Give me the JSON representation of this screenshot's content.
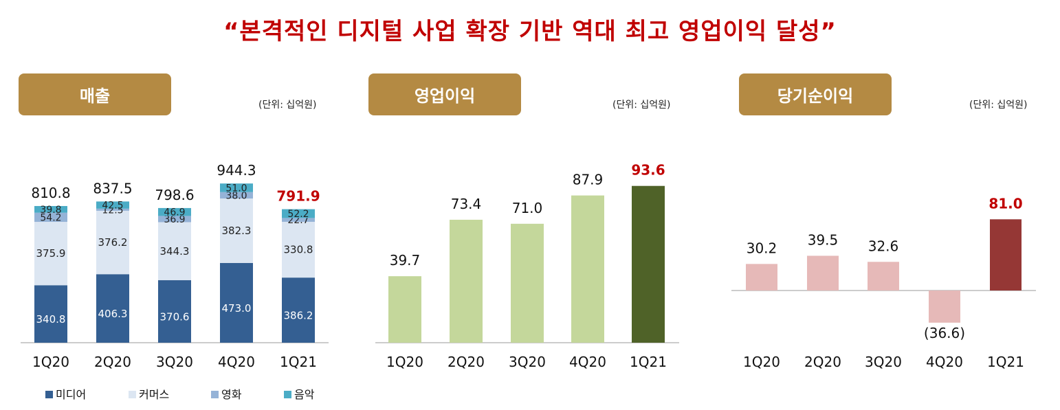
{
  "headline": "“본격적인 디지털 사업 확장 기반 역대 최고 영업이익 달성”",
  "unit_label": "(단위:  십억원)",
  "colors": {
    "title": "#c00000",
    "panel_header": "#b48a43",
    "media": "#345f92",
    "commerce": "#dce6f2",
    "movie": "#95b3d7",
    "music": "#4bacc6",
    "op_normal": "#c4d79b",
    "op_highlight": "#4f6228",
    "ni_normal": "#e6b9b8",
    "ni_highlight": "#953735",
    "highlight_text": "#c00000"
  },
  "chart_data": [
    {
      "type": "bar",
      "stacked": true,
      "title": "매출",
      "categories": [
        "1Q20",
        "2Q20",
        "3Q20",
        "4Q20",
        "1Q21"
      ],
      "series": [
        {
          "name": "미디어",
          "values": [
            340.8,
            406.3,
            370.6,
            473.0,
            386.2
          ],
          "labels": [
            "340.8",
            "406.3",
            "370.6",
            "473.0",
            "386.2"
          ]
        },
        {
          "name": "커머스",
          "values": [
            375.9,
            376.2,
            344.3,
            382.3,
            330.8
          ],
          "labels": [
            "375.9",
            "376.2",
            "344.3",
            "382.3",
            "330.8"
          ]
        },
        {
          "name": "영화",
          "values": [
            54.2,
            12.5,
            36.9,
            38.0,
            22.7
          ],
          "labels": [
            "54.2",
            "12.5",
            "36.9",
            "38.0",
            "22.7"
          ]
        },
        {
          "name": "음악",
          "values": [
            39.8,
            42.5,
            46.9,
            51.0,
            52.2
          ],
          "labels": [
            "39.8",
            "42.5",
            "46.9",
            "51.0",
            "52.2"
          ]
        }
      ],
      "totals": [
        "810.8",
        "837.5",
        "798.6",
        "944.3",
        "791.9"
      ],
      "highlight_index": 4,
      "legend": [
        "미디어",
        "커머스",
        "영화",
        "음악"
      ],
      "legend_position": "bottom",
      "ylim": [
        0,
        1000
      ]
    },
    {
      "type": "bar",
      "title": "영업이익",
      "categories": [
        "1Q20",
        "2Q20",
        "3Q20",
        "4Q20",
        "1Q21"
      ],
      "values": [
        39.7,
        73.4,
        71.0,
        87.9,
        93.6
      ],
      "labels": [
        "39.7",
        "73.4",
        "71.0",
        "87.9",
        "93.6"
      ],
      "highlight_index": 4,
      "ylim": [
        0,
        100
      ]
    },
    {
      "type": "bar",
      "title": "당기순이익",
      "categories": [
        "1Q20",
        "2Q20",
        "3Q20",
        "4Q20",
        "1Q21"
      ],
      "values": [
        30.2,
        39.5,
        32.6,
        -36.6,
        81.0
      ],
      "labels": [
        "30.2",
        "39.5",
        "32.6",
        "(36.6)",
        "81.0"
      ],
      "highlight_index": 4,
      "ylim": [
        -40,
        90
      ]
    }
  ]
}
